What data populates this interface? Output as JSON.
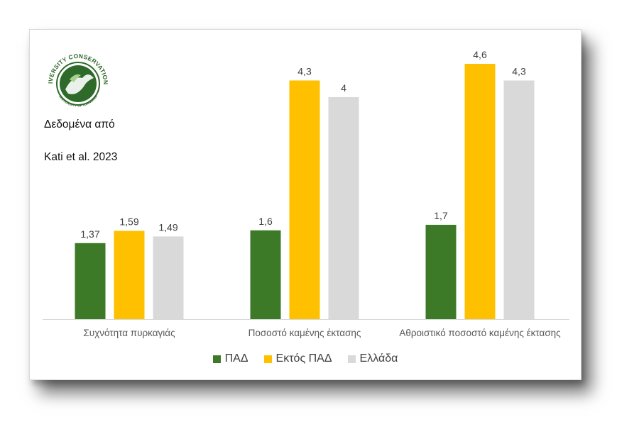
{
  "logo": {
    "text_top": "BIODIVERSITY CONSERVATION LAB",
    "text_bottom": "UNIVERSITY OF IOANNINA"
  },
  "source": {
    "line1": "Δεδομένα από",
    "line2": "Kati et al. 2023"
  },
  "chart_data": {
    "type": "bar",
    "title": "",
    "xlabel": "",
    "ylabel": "",
    "ylim": [
      0,
      4.6
    ],
    "grid": false,
    "legend_position": "bottom",
    "categories": [
      "Συχνότητα πυρκαγιάς",
      "Ποσοστό καμένης έκτασης",
      "Αθροιστικό ποσοστό καμένης έκτασης"
    ],
    "series": [
      {
        "name": "ΠΑΔ",
        "color": "#3d7a27",
        "values": [
          1.37,
          1.6,
          1.7
        ],
        "labels": [
          "1,37",
          "1,6",
          "1,7"
        ]
      },
      {
        "name": "Εκτός ΠΑΔ",
        "color": "#ffc000",
        "values": [
          1.59,
          4.3,
          4.6
        ],
        "labels": [
          "1,59",
          "4,3",
          "4,6"
        ]
      },
      {
        "name": "Ελλάδα",
        "color": "#d9d9d9",
        "values": [
          1.49,
          4.0,
          4.3
        ],
        "labels": [
          "1,49",
          "4",
          "4,3"
        ]
      }
    ]
  }
}
